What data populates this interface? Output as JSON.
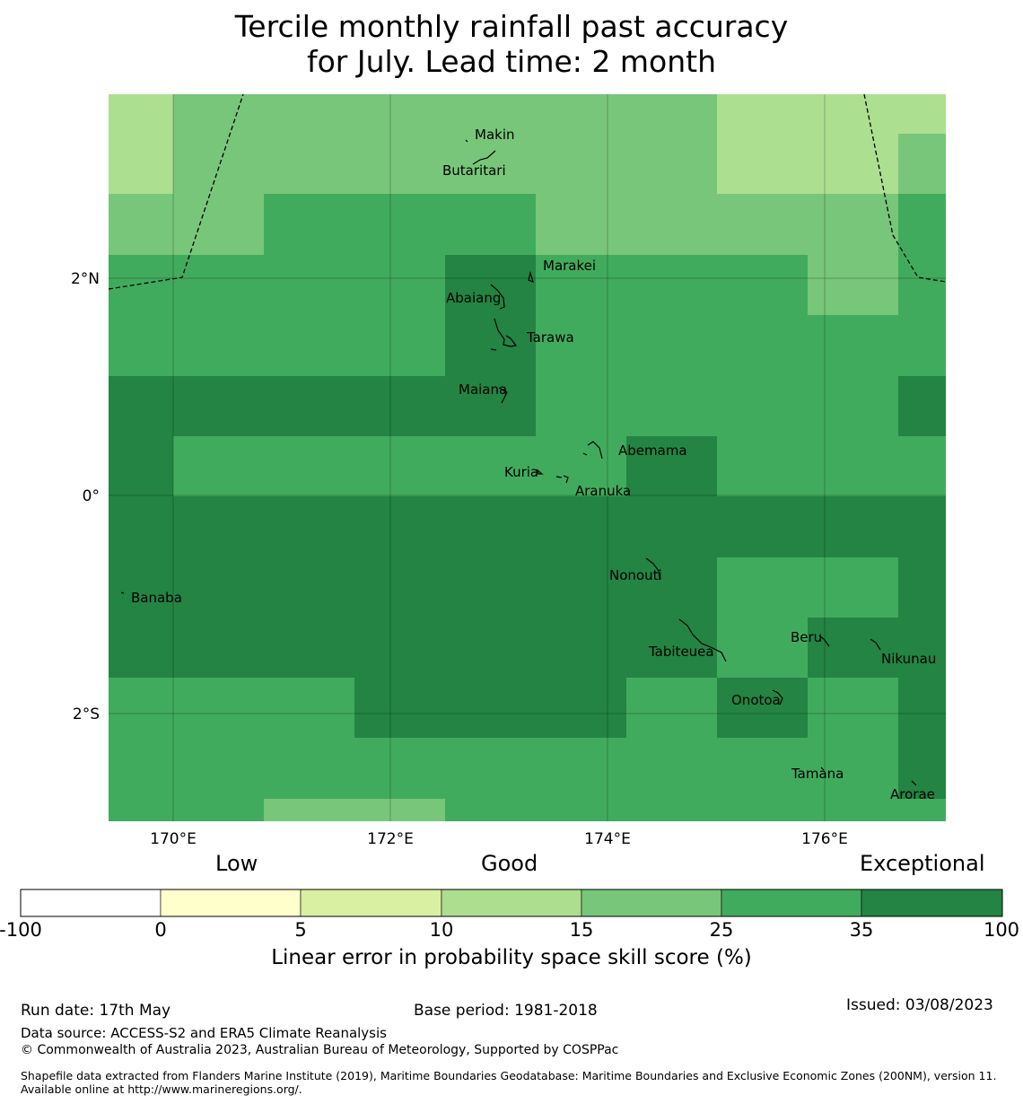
{
  "title_line1": "Tercile monthly rainfall past accuracy",
  "title_line2": "for July. Lead time: 2 month",
  "map": {
    "lon_ticks": [
      "170°E",
      "172°E",
      "174°E",
      "176°E"
    ],
    "lat_ticks": [
      "2°N",
      "0°",
      "2°S"
    ],
    "islands": [
      "Makin",
      "Butaritari",
      "Marakei",
      "Abaiang",
      "Tarawa",
      "Maiana",
      "Abemama",
      "Kuria",
      "Aranuka",
      "Nonouti",
      "Banaba",
      "Tabiteuea",
      "Beru",
      "Nikunau",
      "Onotoa",
      "Tamana",
      "Arorae"
    ],
    "colors": {
      "c10_15": "#addf91",
      "c15_25": "#78c679",
      "c25_35": "#41ab5d",
      "c35_100": "#238443"
    }
  },
  "colorbar": {
    "categories": [
      "Low",
      "Good",
      "Exceptional"
    ],
    "ticks": [
      "-100",
      "0",
      "5",
      "10",
      "15",
      "25",
      "35",
      "100"
    ],
    "colors": [
      "#ffffff",
      "#ffffcc",
      "#d9f0a3",
      "#addd8e",
      "#78c679",
      "#41ab5d",
      "#238443"
    ],
    "label": "Linear error in probability space skill score (%)"
  },
  "footer": {
    "run_date": "Run date: 17th May",
    "base_period": "Base period: 1981-2018",
    "issued": "Issued: 03/08/2023",
    "data_source": "Data source: ACCESS-S2 and ERA5 Climate Reanalysis",
    "copyright": "© Commonwealth of Australia 2023, Australian Bureau of Meteorology, Supported by COSPPac",
    "shapefile": "Shapefile data extracted from Flanders Marine Institute (2019), Maritime Boundaries Geodatabase: Maritime Boundaries and Exclusive Economic Zones (200NM), version 11. Available online at http://www.marineregions.org/."
  }
}
